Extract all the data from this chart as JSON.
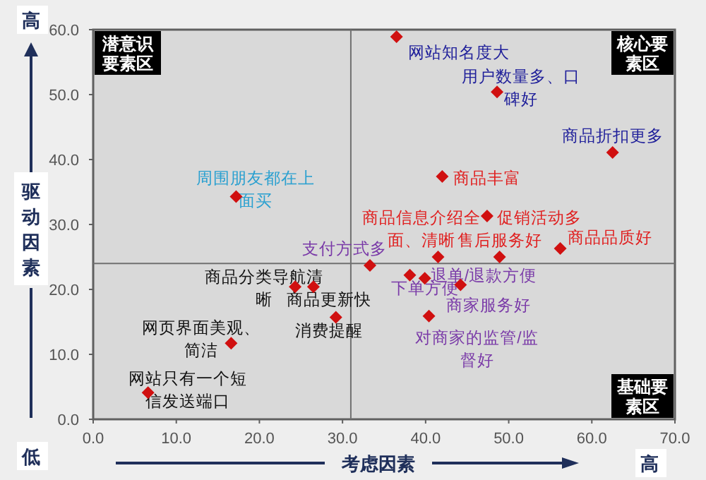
{
  "chart_data": {
    "type": "scatter",
    "xlabel": "考虑因素",
    "ylabel": "驱动因素",
    "xlim": [
      0,
      70
    ],
    "ylim": [
      0,
      60
    ],
    "xticks": [
      {
        "value": 0,
        "label": "0.0"
      },
      {
        "value": 10,
        "label": "10.0"
      },
      {
        "value": 20,
        "label": "20.0"
      },
      {
        "value": 30,
        "label": "30.0"
      },
      {
        "value": 40,
        "label": "40.0"
      },
      {
        "value": 50,
        "label": "50.0"
      },
      {
        "value": 60,
        "label": "60.0"
      },
      {
        "value": 70,
        "label": "70.0"
      }
    ],
    "yticks": [
      {
        "value": 0,
        "label": "0.0"
      },
      {
        "value": 10,
        "label": "10.0"
      },
      {
        "value": 20,
        "label": "20.0"
      },
      {
        "value": 30,
        "label": "30.0"
      },
      {
        "value": 40,
        "label": "40.0"
      },
      {
        "value": 50,
        "label": "50.0"
      },
      {
        "value": 60,
        "label": "60.0"
      }
    ],
    "marker": "diamond",
    "grid": false,
    "ref_lines": [
      {
        "axis": "x",
        "value": 31,
        "color": "#707070"
      },
      {
        "axis": "y",
        "value": 24,
        "color": "#707070"
      }
    ],
    "annotations": [
      "潜意识要素区",
      "核心要素区",
      "基础要素区",
      "高",
      "低",
      "高"
    ],
    "series": [
      {
        "color": "#d01010",
        "x": [
          36.5,
          48.6,
          62.5
        ],
        "values": [
          58.9,
          50.4,
          41.1
        ],
        "value_labels": [
          "网站知名度大",
          "用户数量多、口碑好",
          "商品折扣更多"
        ]
      },
      {
        "color": "#d01010",
        "x": [
          42.0,
          47.4,
          41.5,
          48.9,
          56.2
        ],
        "values": [
          37.4,
          31.3,
          25.0,
          25.0,
          26.3
        ],
        "value_labels": [
          "商品丰富",
          "促销活动多",
          "商品信息介绍全面、清晰",
          "售后服务好",
          "商品品质好"
        ]
      },
      {
        "color": "#d01010",
        "x": [
          17.2
        ],
        "values": [
          34.3
        ],
        "value_labels": [
          "周围朋友都在上面买"
        ]
      },
      {
        "color": "#d01010",
        "x": [
          33.3,
          38.1,
          39.9,
          44.2,
          40.4
        ],
        "values": [
          23.7,
          22.2,
          21.7,
          20.7,
          15.9
        ],
        "value_labels": [
          "支付方式多",
          "下单方便",
          "退单/退款方便",
          "商家服务好",
          "对商家的监管/监督好"
        ]
      },
      {
        "color": "#d01010",
        "x": [
          24.3,
          26.5,
          29.2,
          16.6,
          6.6
        ],
        "values": [
          20.4,
          20.4,
          15.7,
          11.7,
          4.1
        ],
        "value_labels": [
          "商品分类导航清晰",
          "商品更新快",
          "消费提醒",
          "网页界面美观、简洁",
          "网站只有一个短信发送端口"
        ]
      }
    ]
  }
}
